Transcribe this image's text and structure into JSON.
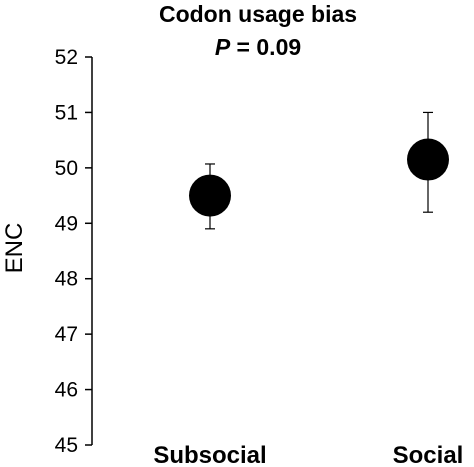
{
  "chart_data": {
    "type": "scatter",
    "title": "Codon usage bias",
    "subtitle_italic": "P",
    "subtitle_rest": " = 0.09",
    "ylabel": "ENC",
    "xlabel": "",
    "categories": [
      "Subsocial",
      "Social"
    ],
    "ylim": [
      45,
      52
    ],
    "yticks": [
      45,
      46,
      47,
      48,
      49,
      50,
      51,
      52
    ],
    "values": [
      49.5,
      50.15
    ],
    "errors": [
      {
        "low": 48.9,
        "high": 50.07
      },
      {
        "low": 49.2,
        "high": 51.0
      }
    ],
    "marker_color": "#000000",
    "grid": false,
    "legend": "none"
  }
}
